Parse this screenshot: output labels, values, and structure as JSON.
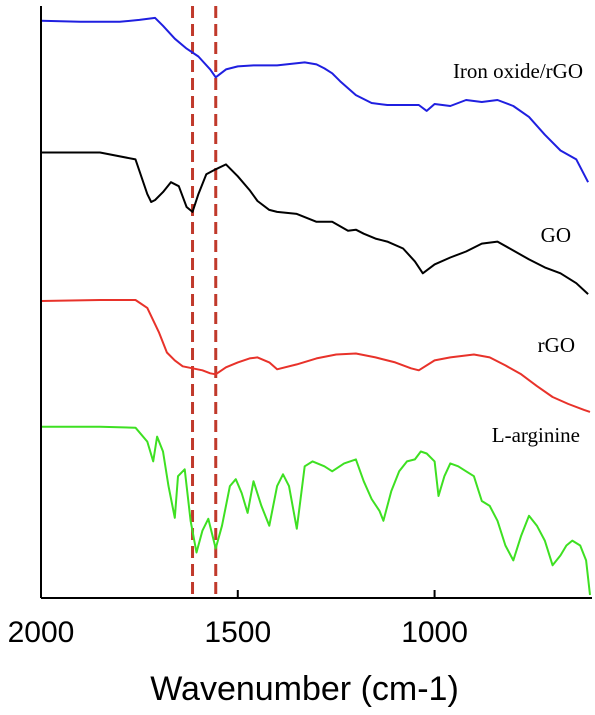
{
  "chart_data": {
    "type": "line",
    "xlabel": "Wavenumber (cm-1)",
    "ylabel": "",
    "xlim": [
      2000,
      600
    ],
    "x_reversed": true,
    "y_ticks_shown": false,
    "x_ticks": [
      2000,
      1500,
      1000
    ],
    "x_tick_labels": [
      "2000",
      "1500",
      "1000"
    ],
    "reference_lines": [
      {
        "x": 1615,
        "style": "dashed",
        "color": "#c0392b"
      },
      {
        "x": 1556,
        "style": "dashed",
        "color": "#c0392b"
      }
    ],
    "series": [
      {
        "name": "Iron oxide/rGO",
        "color": "#1f1fe0",
        "x": [
          2000,
          1900,
          1800,
          1750,
          1710,
          1690,
          1660,
          1630,
          1600,
          1570,
          1556,
          1530,
          1500,
          1460,
          1400,
          1330,
          1300,
          1280,
          1260,
          1240,
          1200,
          1160,
          1120,
          1080,
          1040,
          1020,
          1000,
          960,
          920,
          880,
          840,
          800,
          760,
          720,
          680,
          640,
          610
        ],
        "y": [
          15,
          16,
          16,
          14,
          12,
          20,
          33,
          43,
          51,
          64,
          72,
          64,
          61,
          60,
          60,
          57,
          59,
          63,
          68,
          76,
          90,
          98,
          100,
          100,
          100,
          106,
          99,
          101,
          95,
          97,
          95,
          101,
          112,
          130,
          146,
          155,
          178
        ]
      },
      {
        "name": "GO",
        "color": "#000000",
        "x": [
          2000,
          1850,
          1760,
          1730,
          1720,
          1710,
          1690,
          1670,
          1650,
          1630,
          1615,
          1600,
          1580,
          1556,
          1530,
          1500,
          1470,
          1450,
          1420,
          1400,
          1350,
          1300,
          1260,
          1220,
          1200,
          1180,
          1150,
          1120,
          1080,
          1050,
          1030,
          1000,
          960,
          920,
          880,
          840,
          800,
          760,
          720,
          680,
          640,
          610
        ],
        "y": [
          148,
          148,
          155,
          190,
          198,
          196,
          188,
          178,
          182,
          203,
          208,
          190,
          170,
          165,
          160,
          172,
          186,
          197,
          206,
          208,
          210,
          218,
          218,
          227,
          226,
          230,
          235,
          238,
          245,
          258,
          270,
          261,
          254,
          248,
          240,
          238,
          247,
          256,
          264,
          270,
          280,
          291
        ]
      },
      {
        "name": "rGO",
        "color": "#e8322a",
        "x": [
          2000,
          1850,
          1760,
          1730,
          1700,
          1680,
          1660,
          1640,
          1615,
          1590,
          1570,
          1556,
          1530,
          1500,
          1470,
          1450,
          1420,
          1400,
          1350,
          1300,
          1250,
          1200,
          1150,
          1100,
          1060,
          1040,
          1000,
          960,
          900,
          860,
          820,
          780,
          740,
          700,
          660,
          620,
          605
        ],
        "y": [
          298,
          297,
          297,
          305,
          330,
          350,
          358,
          364,
          366,
          368,
          371,
          372,
          365,
          360,
          356,
          355,
          360,
          367,
          362,
          356,
          352,
          351,
          355,
          360,
          366,
          368,
          358,
          355,
          352,
          355,
          363,
          372,
          384,
          395,
          402,
          408,
          410
        ]
      },
      {
        "name": "L-arginine",
        "color": "#3ee022",
        "x": [
          2000,
          1850,
          1760,
          1730,
          1715,
          1705,
          1690,
          1676,
          1660,
          1652,
          1635,
          1620,
          1605,
          1590,
          1575,
          1556,
          1540,
          1520,
          1505,
          1490,
          1475,
          1460,
          1440,
          1420,
          1400,
          1385,
          1370,
          1350,
          1330,
          1310,
          1280,
          1260,
          1230,
          1200,
          1180,
          1160,
          1140,
          1130,
          1110,
          1090,
          1070,
          1050,
          1035,
          1020,
          1000,
          990,
          975,
          960,
          940,
          920,
          900,
          880,
          860,
          840,
          820,
          800,
          780,
          760,
          740,
          720,
          700,
          680,
          665,
          650,
          630,
          615,
          605
        ],
        "y": [
          425,
          425,
          426,
          440,
          460,
          435,
          450,
          485,
          517,
          475,
          468,
          520,
          552,
          530,
          518,
          548,
          525,
          485,
          478,
          492,
          512,
          480,
          505,
          525,
          485,
          473,
          485,
          528,
          465,
          460,
          465,
          470,
          462,
          458,
          480,
          498,
          510,
          520,
          490,
          470,
          460,
          458,
          450,
          452,
          460,
          495,
          475,
          462,
          465,
          470,
          475,
          500,
          505,
          520,
          545,
          560,
          535,
          515,
          525,
          540,
          565,
          555,
          545,
          540,
          545,
          560,
          595
        ]
      }
    ]
  }
}
